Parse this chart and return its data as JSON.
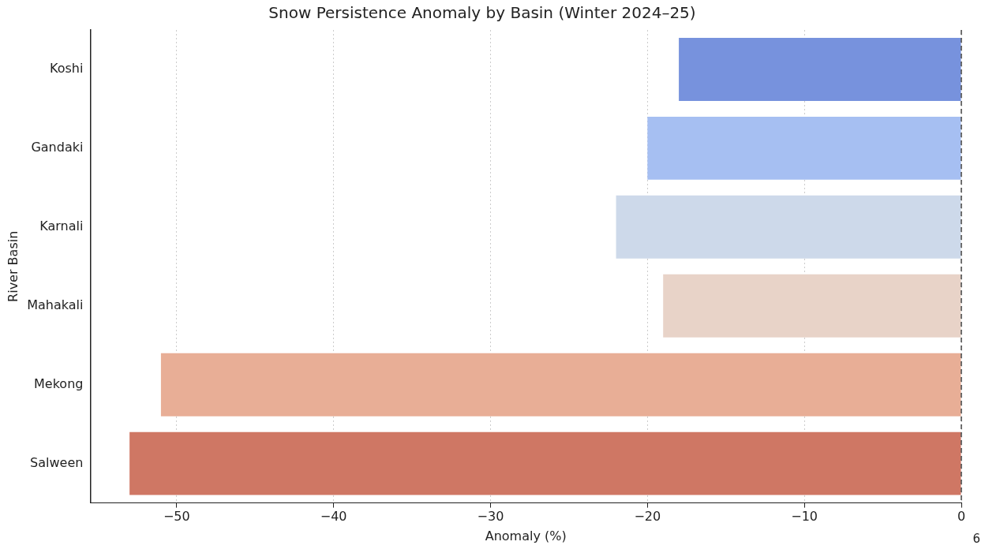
{
  "chart_data": {
    "type": "bar",
    "orientation": "horizontal",
    "title": "Snow Persistence Anomaly by Basin (Winter 2024–25)",
    "xlabel": "Anomaly (%)",
    "ylabel": "River Basin",
    "categories": [
      "Koshi",
      "Gandaki",
      "Karnali",
      "Mahakali",
      "Mekong",
      "Salween"
    ],
    "values": [
      -18,
      -20,
      -22,
      -19,
      -51,
      -53
    ],
    "colors": [
      "#7792dd",
      "#a6bff2",
      "#cdd9ea",
      "#e8d3c8",
      "#e8ae96",
      "#cf7764"
    ],
    "xlim": [
      -55.5,
      0
    ],
    "xticks": [
      {
        "value": -50,
        "label": "−50"
      },
      {
        "value": -40,
        "label": "−40"
      },
      {
        "value": -30,
        "label": "−30"
      },
      {
        "value": -20,
        "label": "−20"
      },
      {
        "value": -10,
        "label": "−10"
      },
      0
    ],
    "grid": "x",
    "legend": false,
    "ref_lines": [
      {
        "axis": "x",
        "value": 0,
        "color": "#444444",
        "line_style": "dashed"
      }
    ],
    "annotations": [
      "6"
    ]
  }
}
